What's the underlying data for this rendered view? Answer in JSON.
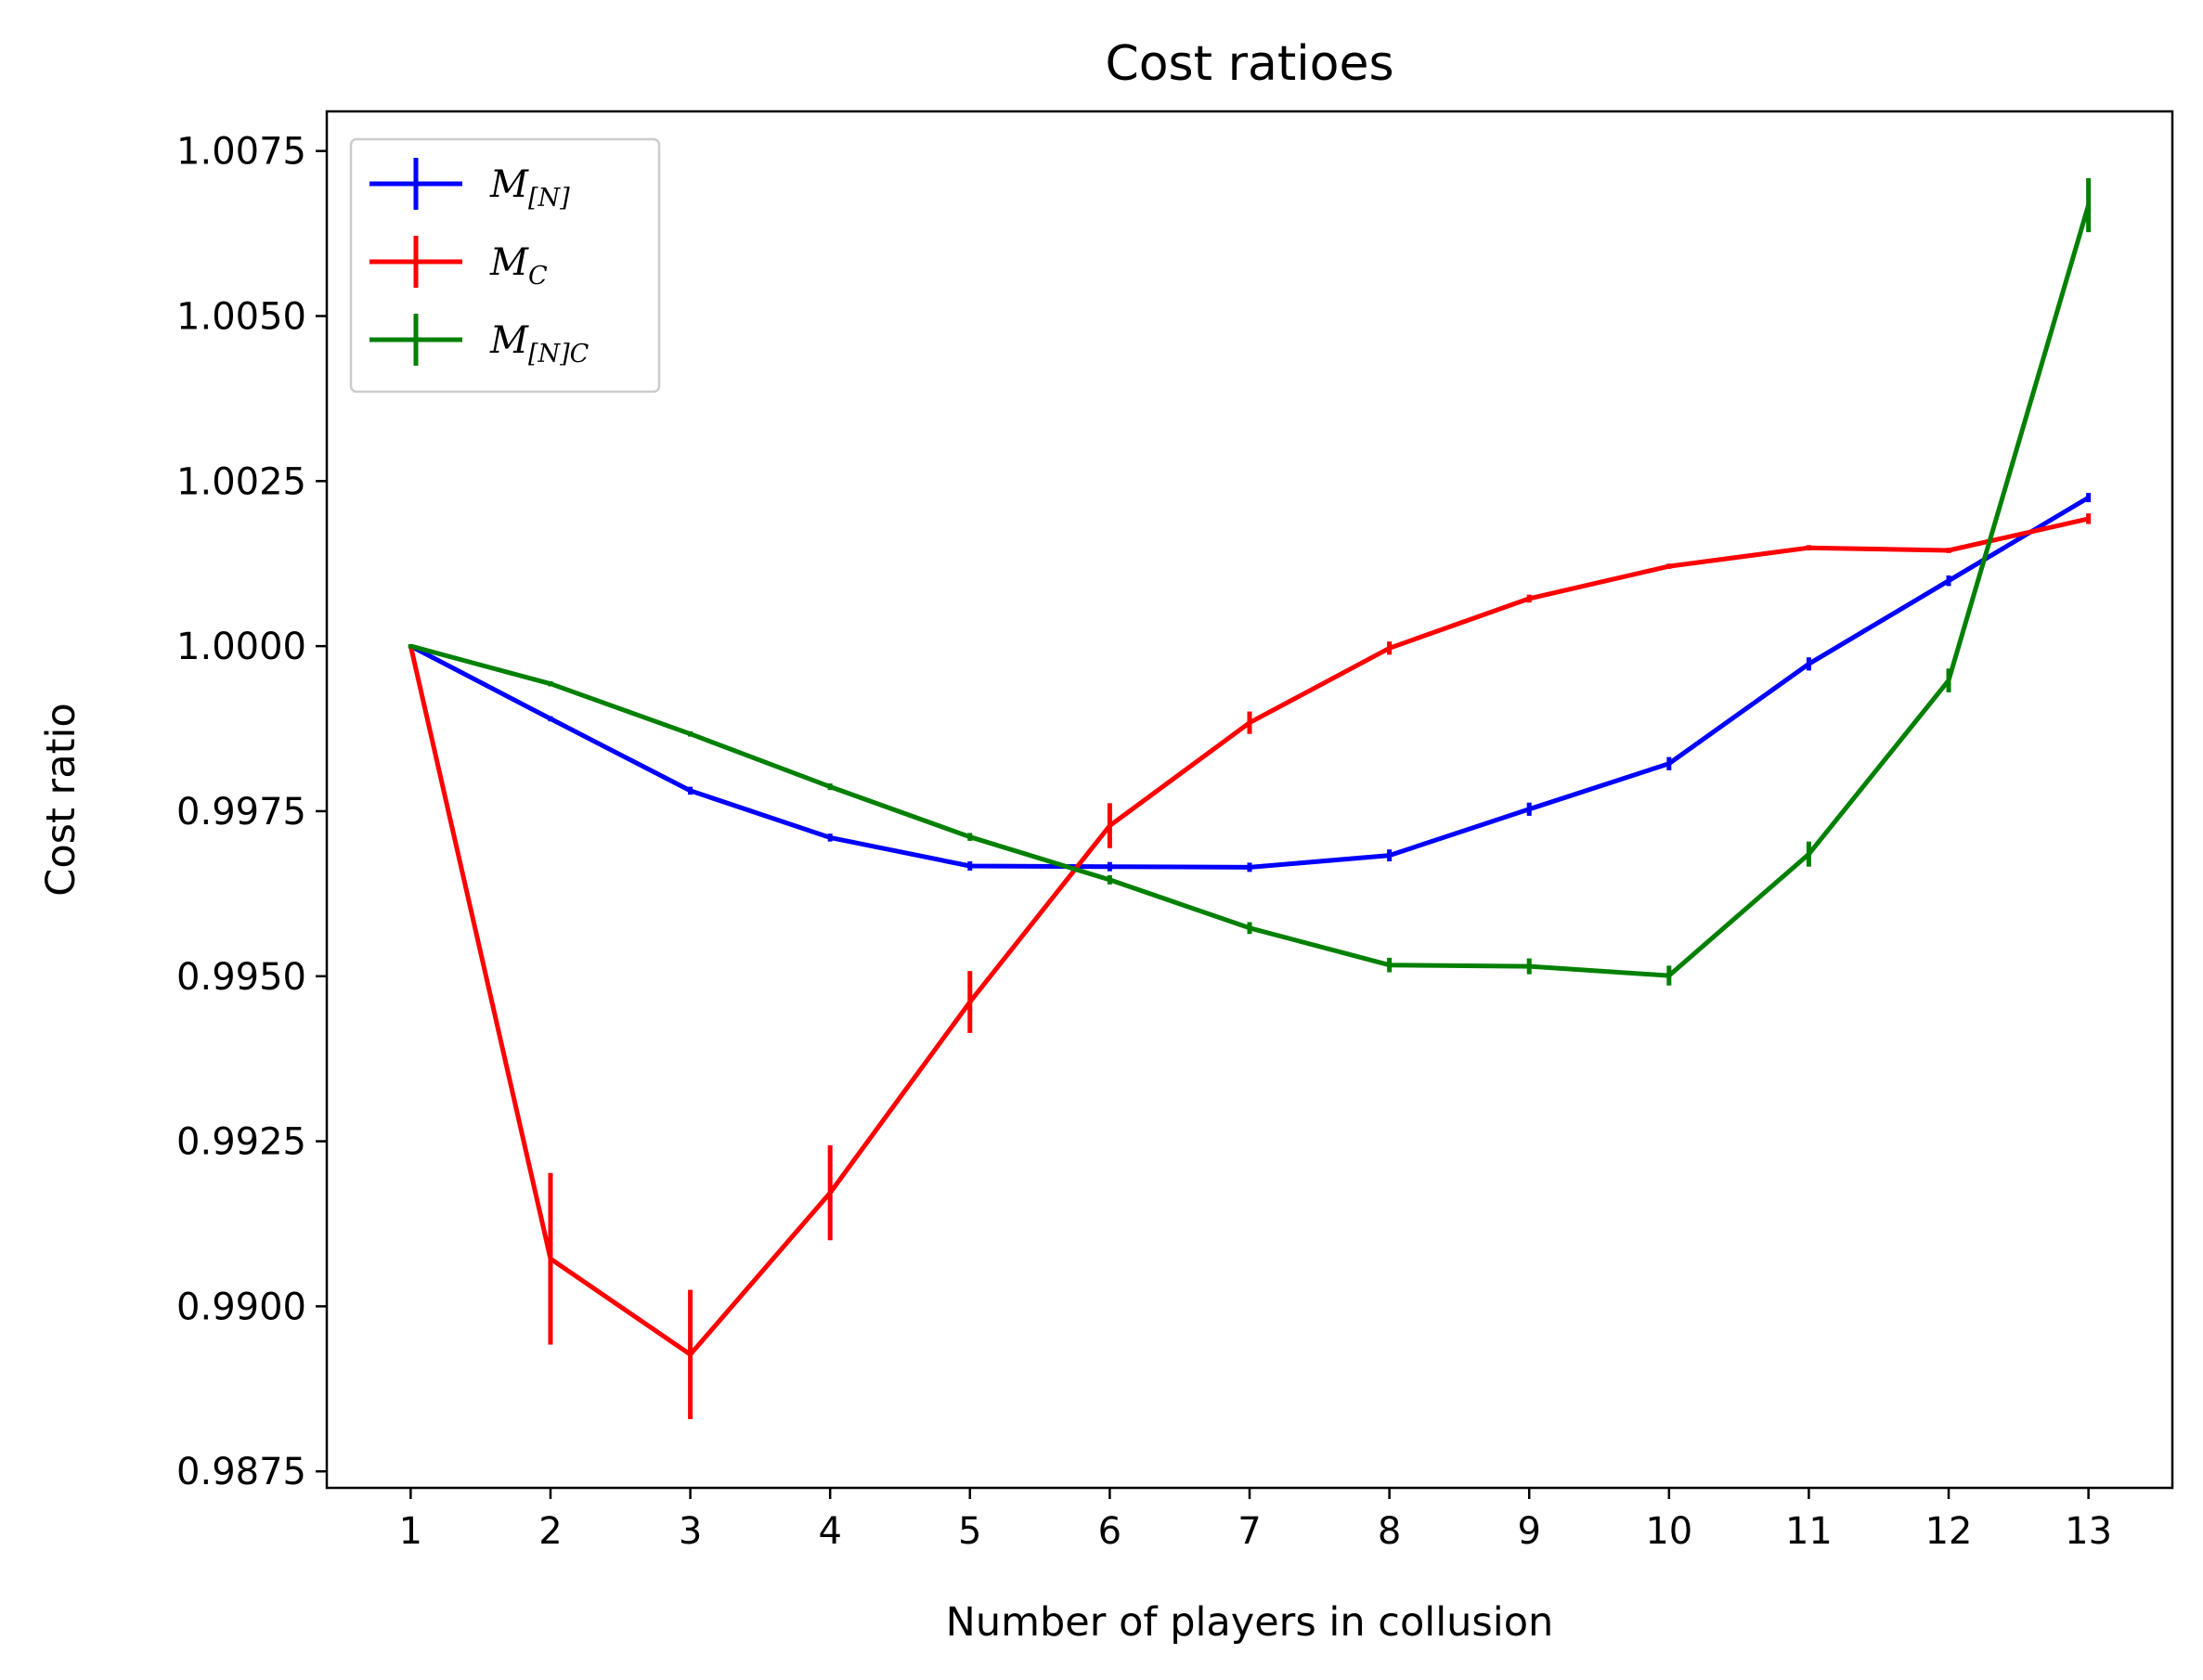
{
  "chart_data": {
    "type": "line",
    "title": "Cost ratioes",
    "xlabel": "Number of players in collusion",
    "ylabel": "Cost ratio",
    "x": [
      1,
      2,
      3,
      4,
      5,
      6,
      7,
      8,
      9,
      10,
      11,
      12,
      13
    ],
    "xlim": [
      0.4,
      13.6
    ],
    "ylim": [
      0.98725,
      1.0081
    ],
    "yticks": [
      0.9875,
      0.99,
      0.9925,
      0.995,
      0.9975,
      1.0,
      1.0025,
      1.005,
      1.0075
    ],
    "ytick_labels": [
      "0.9875",
      "0.9900",
      "0.9925",
      "0.9950",
      "0.9975",
      "1.0000",
      "1.0025",
      "1.0050",
      "1.0075"
    ],
    "xtick_labels": [
      "1",
      "2",
      "3",
      "4",
      "5",
      "6",
      "7",
      "8",
      "9",
      "10",
      "11",
      "12",
      "13"
    ],
    "grid": false,
    "legend_position": "top-left",
    "series": [
      {
        "name_base": "M",
        "name_sub": "[N]",
        "color": "#0000ff",
        "values": [
          1.0,
          0.9989,
          0.99781,
          0.9971,
          0.99667,
          0.99666,
          0.99665,
          0.99683,
          0.99753,
          0.99822,
          0.99973,
          1.00099,
          1.00225
        ],
        "errors": [
          3e-05,
          4e-05,
          6e-05,
          6e-05,
          7e-05,
          7e-05,
          7e-05,
          9e-05,
          0.0001,
          0.0001,
          0.0001,
          8e-05,
          7e-05
        ]
      },
      {
        "name_base": "M",
        "name_sub": "C",
        "color": "#ff0000",
        "values": [
          1.0,
          0.99072,
          0.98927,
          0.99172,
          0.99461,
          0.99728,
          0.99884,
          0.99997,
          1.00072,
          1.00121,
          1.00149,
          1.00145,
          1.00193
        ],
        "errors": [
          3e-05,
          0.0013,
          0.00098,
          0.00072,
          0.00047,
          0.00034,
          0.00017,
          0.0001,
          6e-05,
          4e-05,
          4e-05,
          4e-05,
          8e-05
        ]
      },
      {
        "name_base": "M",
        "name_sub": "[N]C",
        "color": "#008000",
        "values": [
          1.0,
          0.99943,
          0.99867,
          0.99787,
          0.99711,
          0.99646,
          0.99573,
          0.99517,
          0.99515,
          0.99501,
          0.99685,
          0.99948,
          1.00668
        ],
        "errors": [
          3e-05,
          4e-05,
          4e-05,
          5e-05,
          6e-05,
          7e-05,
          9e-05,
          0.00011,
          0.00012,
          0.00015,
          0.00019,
          0.00018,
          0.00041
        ]
      }
    ]
  }
}
